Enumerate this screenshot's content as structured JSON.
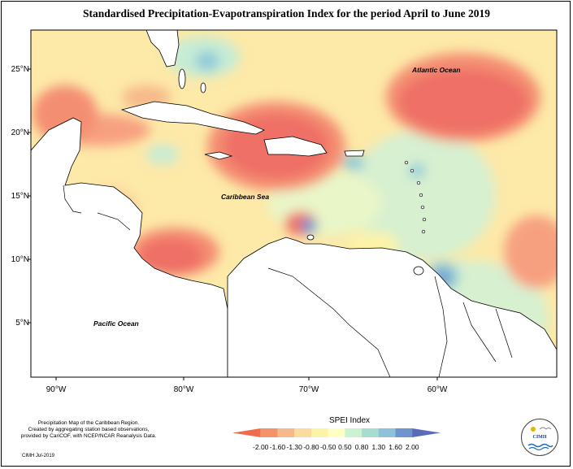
{
  "title": "Standardised Precipitation-Evapotranspiration Index for the period April to June 2019",
  "lat_labels": [
    "25°N",
    "20°N",
    "15°N",
    "10°N",
    "5°N"
  ],
  "lon_labels": [
    "90°W",
    "80°W",
    "70°W",
    "60°W"
  ],
  "regions": {
    "atlantic": "Atlantic Ocean",
    "caribbean": "Caribbean Sea",
    "pacific": "Pacific Ocean"
  },
  "credit": {
    "line1": "Precipitation Map of the Caribbean Region.",
    "line2": "Created by aggregating station based observations,",
    "line3": "provided by CariCOF, with NCEP/NCAR Reanalysis Data.",
    "stamp": "CIMH Jul-2019"
  },
  "legend": {
    "title": "SPEI Index",
    "ticks": [
      "-2.00",
      "-1.60",
      "-1.30",
      "-0.80",
      "-0.50",
      "0.50",
      "0.80",
      "1.30",
      "1.60",
      "2.00"
    ],
    "colors": [
      "#f06a4e",
      "#f4926a",
      "#f7b98b",
      "#fbdc9e",
      "#fdf3a8",
      "#ffffc4",
      "#ccf3cf",
      "#a7dcd2",
      "#8dc2d8",
      "#6f95cf",
      "#5b6bb8"
    ]
  },
  "logo": {
    "text": "CIMH"
  }
}
